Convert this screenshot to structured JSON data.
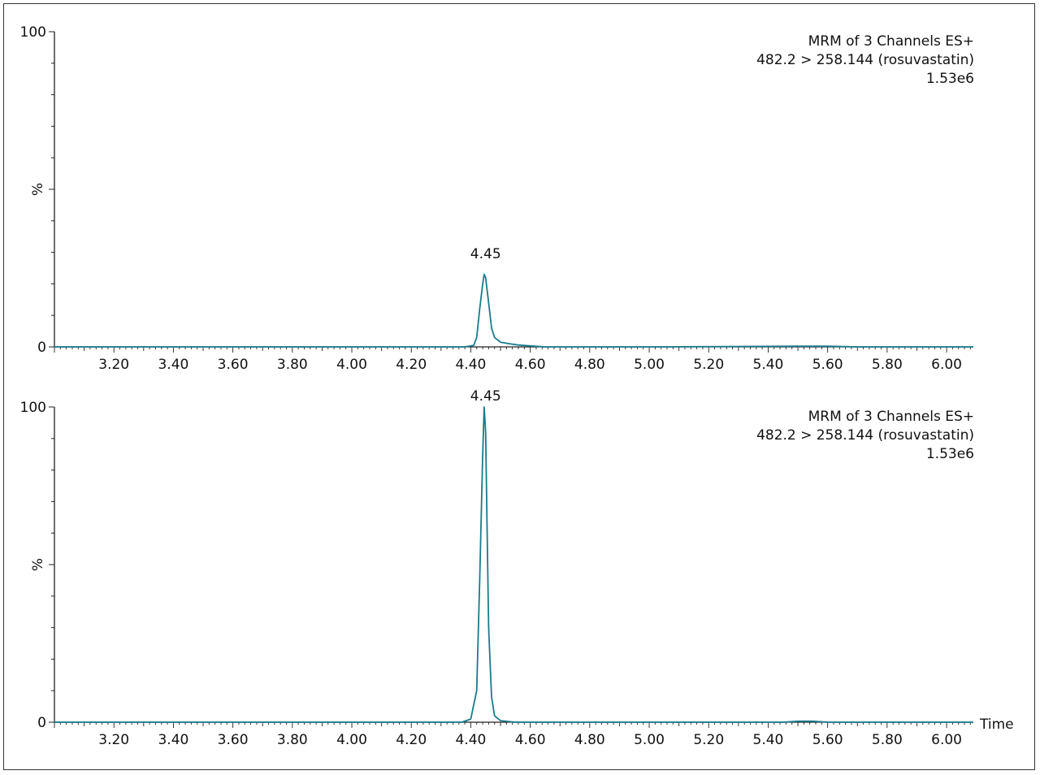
{
  "chart_data": [
    {
      "type": "line",
      "title": "",
      "info_lines": [
        "MRM of 3 Channels ES+",
        "482.2 > 258.144 (rosuvastatin)",
        "1.53e6"
      ],
      "ylabel": "%",
      "xlabel": "",
      "ylim": [
        0,
        100
      ],
      "xlim": [
        3.0,
        6.09
      ],
      "y_tick_labels": [
        "100",
        "0"
      ],
      "y_tick_values": [
        100,
        0
      ],
      "x_tick_labels": [
        "3.20",
        "3.40",
        "3.60",
        "3.80",
        "4.00",
        "4.20",
        "4.40",
        "4.60",
        "4.80",
        "5.00",
        "5.20",
        "5.40",
        "5.60",
        "5.80",
        "6.00"
      ],
      "x_tick_values": [
        3.2,
        3.4,
        3.6,
        3.8,
        4.0,
        4.2,
        4.4,
        4.6,
        4.8,
        5.0,
        5.2,
        5.4,
        5.6,
        5.8,
        6.0
      ],
      "peak_label": "4.45",
      "peak_label_x": 4.45,
      "peak_label_y": 26,
      "color": "#1a7b8c",
      "series": [
        {
          "x": [
            3.0,
            3.5,
            4.0,
            4.38,
            4.41,
            4.42,
            4.43,
            4.44,
            4.445,
            4.45,
            4.46,
            4.47,
            4.48,
            4.5,
            4.53,
            4.56,
            4.6,
            4.65,
            5.0,
            5.5,
            5.6,
            5.7,
            6.09
          ],
          "y": [
            0,
            0,
            0,
            0,
            0.5,
            3,
            12,
            20,
            23,
            22,
            14,
            6,
            3,
            1.5,
            1,
            0.6,
            0.3,
            0,
            0,
            0.2,
            0.2,
            0,
            0
          ]
        }
      ]
    },
    {
      "type": "line",
      "title": "",
      "info_lines": [
        "MRM of 3 Channels ES+",
        "482.2 > 258.144 (rosuvastatin)",
        "1.53e6"
      ],
      "ylabel": "%",
      "xlabel": "Time",
      "ylim": [
        0,
        100
      ],
      "xlim": [
        3.0,
        6.09
      ],
      "y_tick_labels": [
        "100",
        "0"
      ],
      "y_tick_values": [
        100,
        0
      ],
      "x_tick_labels": [
        "3.20",
        "3.40",
        "3.60",
        "3.80",
        "4.00",
        "4.20",
        "4.40",
        "4.60",
        "4.80",
        "5.00",
        "5.20",
        "5.40",
        "5.60",
        "5.80",
        "6.00"
      ],
      "x_tick_values": [
        3.2,
        3.4,
        3.6,
        3.8,
        4.0,
        4.2,
        4.4,
        4.6,
        4.8,
        5.0,
        5.2,
        5.4,
        5.6,
        5.8,
        6.0
      ],
      "peak_label": "4.45",
      "peak_label_x": 4.45,
      "peak_label_y": 100,
      "color": "#1a7b8c",
      "series": [
        {
          "x": [
            3.0,
            3.5,
            4.0,
            4.37,
            4.4,
            4.42,
            4.43,
            4.44,
            4.445,
            4.45,
            4.455,
            4.46,
            4.47,
            4.48,
            4.5,
            4.55,
            5.0,
            5.45,
            5.5,
            5.55,
            5.6,
            6.09
          ],
          "y": [
            0,
            0,
            0,
            0,
            1,
            10,
            45,
            85,
            100,
            92,
            60,
            30,
            8,
            2,
            0.5,
            0,
            0,
            0,
            0.3,
            0.3,
            0,
            0
          ]
        }
      ]
    }
  ]
}
